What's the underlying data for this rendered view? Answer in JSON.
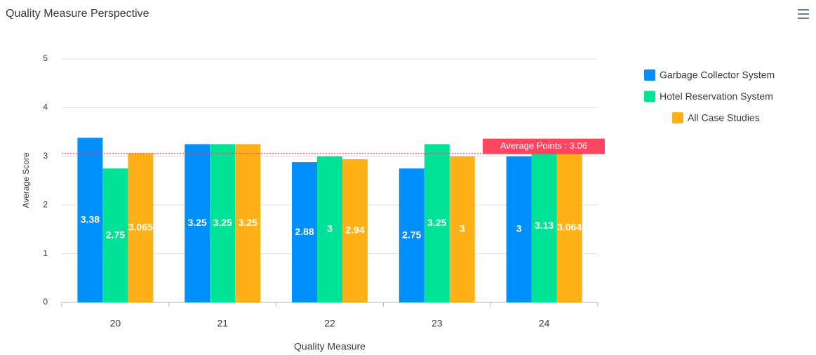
{
  "chart_data": {
    "type": "bar",
    "title": "Quality Measure Perspective",
    "x_label": "Quality Measure",
    "y_label": "Average Score",
    "categories": [
      "20",
      "21",
      "22",
      "23",
      "24"
    ],
    "series": [
      {
        "name": "Garbage Collector System",
        "color": "#008ffb",
        "values": [
          3.38,
          3.25,
          2.88,
          2.75,
          3
        ]
      },
      {
        "name": "Hotel Reservation System",
        "color": "#00e396",
        "values": [
          2.75,
          3.25,
          3,
          3.25,
          3.13
        ]
      },
      {
        "name": "All Case Studies",
        "color": "#feb019",
        "values": [
          3.065,
          3.25,
          2.94,
          3,
          3.064
        ]
      }
    ],
    "ylim": [
      0,
      5
    ],
    "yticks": [
      0,
      1,
      2,
      3,
      4,
      5
    ],
    "grid": true,
    "legend": "right",
    "annotation": {
      "value": 3.06,
      "label": "Average Points : 3.06",
      "color": "#ff4560"
    }
  }
}
